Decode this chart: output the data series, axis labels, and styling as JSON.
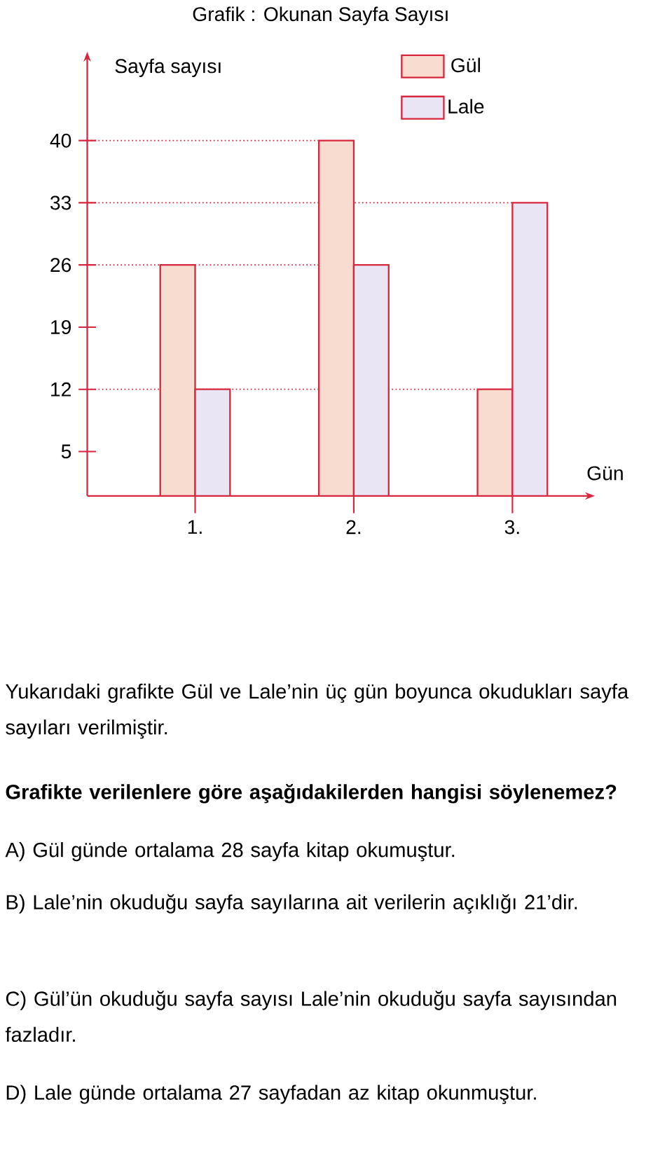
{
  "chart_data": {
    "type": "bar",
    "title": "Grafik : Okunan Sayfa Sayısı",
    "xlabel": "Gün",
    "ylabel": "Sayfa sayısı",
    "categories": [
      "1.",
      "2.",
      "3."
    ],
    "series": [
      {
        "name": "Gül",
        "color": "#f9dcd0",
        "values": [
          26,
          40,
          12
        ]
      },
      {
        "name": "Lale",
        "color": "#e9e5f5",
        "values": [
          12,
          26,
          33
        ]
      }
    ],
    "ylim": [
      0,
      50
    ],
    "yticks": [
      5,
      12,
      19,
      26,
      33,
      40
    ],
    "grid": false,
    "legend": "top right",
    "ref_lines": [
      {
        "axis": "y",
        "value": 40,
        "color": "#d7263d",
        "line_style": "dotted"
      },
      {
        "axis": "y",
        "value": 33,
        "color": "#d7263d",
        "line_style": "dotted"
      },
      {
        "axis": "y",
        "value": 26,
        "color": "#d7263d",
        "line_style": "dotted"
      },
      {
        "axis": "y",
        "value": 12,
        "color": "#d7263d",
        "line_style": "dotted"
      }
    ],
    "annotations": [
      "Yukarıdaki grafikte Gül ve Lale’nin üç gün boyunca okudukları sayfa sayıları verilmiştir.",
      "Grafikte verilenlere göre aşağıdakilerden hangisi söylenemez?",
      "A) Gül günde ortalama 28 sayfa kitap okumuştur.",
      "B) Lale’nin okuduğu sayfa sayılarına ait verilerin açıklığı 21’dir.",
      "C) Gül’ün okuduğu sayfa sayısı Lale’nin okuduğu sayfa sayısından fazladır.",
      "D) Lale günde ortalama 27 sayfadan az kitap okunmuştur."
    ]
  }
}
